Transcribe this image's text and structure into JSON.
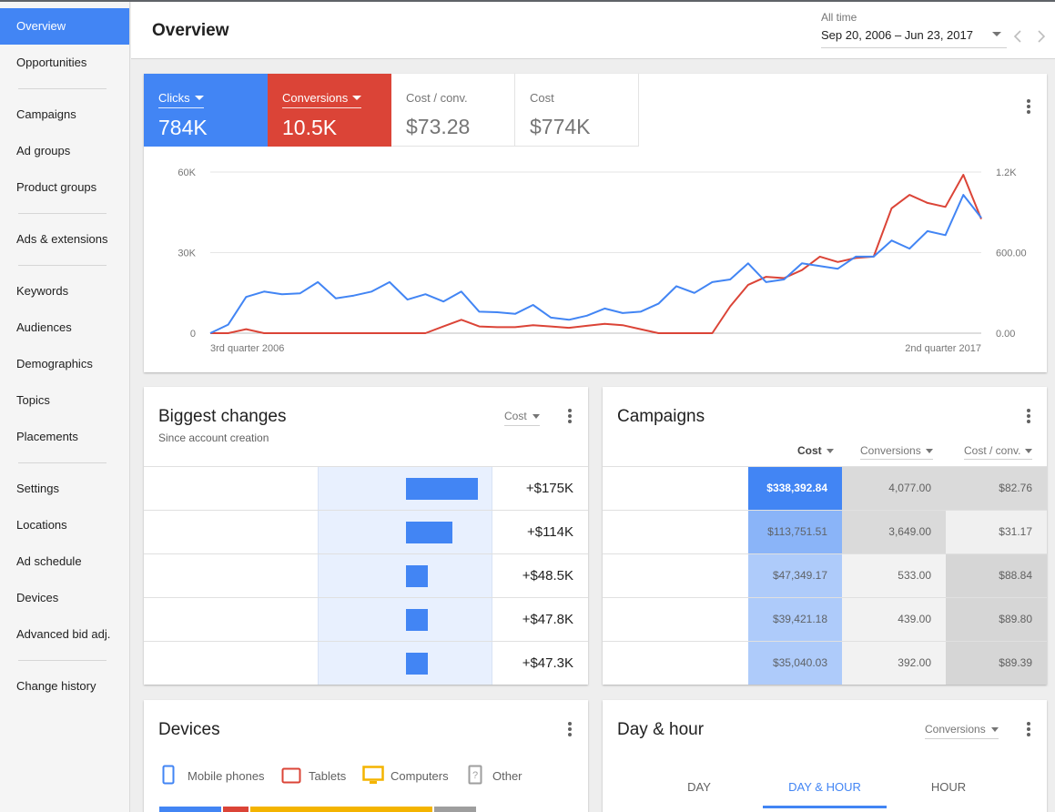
{
  "sidebar": {
    "groups": [
      [
        "Overview",
        "Opportunities"
      ],
      [
        "Campaigns",
        "Ad groups",
        "Product groups"
      ],
      [
        "Ads & extensions"
      ],
      [
        "Keywords",
        "Audiences",
        "Demographics",
        "Topics",
        "Placements"
      ],
      [
        "Settings",
        "Locations",
        "Ad schedule",
        "Devices",
        "Advanced bid adj."
      ],
      [
        "Change history"
      ]
    ],
    "active": "Overview"
  },
  "header": {
    "title": "Overview",
    "date_label": "All time",
    "date_range": "Sep 20, 2006 – Jun 23, 2017"
  },
  "overview": {
    "tiles": [
      {
        "label": "Clicks",
        "value": "784K"
      },
      {
        "label": "Conversions",
        "value": "10.5K"
      },
      {
        "label": "Cost / conv.",
        "value": "$73.28"
      },
      {
        "label": "Cost",
        "value": "$774K"
      }
    ]
  },
  "chart_data": {
    "type": "line",
    "x_tick_labels": [
      "3rd quarter 2006",
      "2nd quarter 2017"
    ],
    "y_left_ticks": [
      "60K",
      "30K",
      "0"
    ],
    "y_right_ticks": [
      "1.2K",
      "600.00",
      "0.00"
    ],
    "ylim_left": [
      0,
      60000
    ],
    "ylim_right": [
      0,
      1200
    ],
    "grid": true,
    "colors": {
      "clicks": "#4285f4",
      "conversions": "#db4437"
    },
    "series": [
      {
        "axis": "left",
        "values": [
          0,
          3200,
          13500,
          15500,
          14500,
          14800,
          19000,
          13000,
          14000,
          15500,
          19000,
          12500,
          14500,
          11800,
          15500,
          8000,
          7800,
          7200,
          10500,
          5800,
          5000,
          6500,
          9200,
          7500,
          8000,
          11000,
          17500,
          15000,
          19000,
          20000,
          26000,
          19000,
          20000,
          26000,
          25000,
          24000,
          28500,
          28500,
          34500,
          31500,
          38000,
          36500,
          51500,
          43000
        ]
      },
      {
        "axis": "right",
        "values": [
          0,
          0,
          30,
          0,
          0,
          0,
          0,
          0,
          0,
          0,
          0,
          0,
          0,
          50,
          100,
          50,
          45,
          45,
          60,
          50,
          40,
          55,
          70,
          60,
          30,
          0,
          0,
          0,
          0,
          200,
          360,
          420,
          410,
          470,
          570,
          530,
          560,
          570,
          930,
          1030,
          970,
          940,
          1180,
          850
        ]
      }
    ]
  },
  "biggest_changes": {
    "title": "Biggest changes",
    "subtitle": "Since account creation",
    "dropdown": "Cost",
    "rows": [
      {
        "value": "+$175K",
        "amount": 175
      },
      {
        "value": "+$114K",
        "amount": 114
      },
      {
        "value": "+$48.5K",
        "amount": 48.5
      },
      {
        "value": "+$47.8K",
        "amount": 47.8
      },
      {
        "value": "+$47.3K",
        "amount": 47.3
      }
    ]
  },
  "campaigns": {
    "title": "Campaigns",
    "columns": [
      "Cost",
      "Conversions",
      "Cost / conv."
    ],
    "rows": [
      {
        "cost": "$338,392.84",
        "conv": "4,077.00",
        "cpc": "$82.76",
        "cost_bg": "#4285f4",
        "conv_bg": "#dadada",
        "cpc_bg": "#dadada"
      },
      {
        "cost": "$113,751.51",
        "conv": "3,649.00",
        "cpc": "$31.17",
        "cost_bg": "#8ab4f8",
        "conv_bg": "#dadada",
        "cpc_bg": "#f0f0f0"
      },
      {
        "cost": "$47,349.17",
        "conv": "533.00",
        "cpc": "$88.84",
        "cost_bg": "#aecbfa",
        "conv_bg": "#f2f2f2",
        "cpc_bg": "#d6d6d6"
      },
      {
        "cost": "$39,421.18",
        "conv": "439.00",
        "cpc": "$89.80",
        "cost_bg": "#aecbfa",
        "conv_bg": "#f2f2f2",
        "cpc_bg": "#d6d6d6"
      },
      {
        "cost": "$35,040.03",
        "conv": "392.00",
        "cpc": "$89.39",
        "cost_bg": "#aecbfa",
        "conv_bg": "#f2f2f2",
        "cpc_bg": "#d6d6d6"
      }
    ]
  },
  "devices": {
    "title": "Devices",
    "legend": [
      {
        "label": "Mobile phones",
        "icon": "mobile-phone-icon",
        "color": "#4285f4"
      },
      {
        "label": "Tablets",
        "icon": "tablet-icon",
        "color": "#db4437"
      },
      {
        "label": "Computers",
        "icon": "computer-icon",
        "color": "#f4b400"
      },
      {
        "label": "Other",
        "icon": "other-device-icon",
        "color": "#9e9e9e"
      }
    ]
  },
  "day_hour": {
    "title": "Day & hour",
    "dropdown": "Conversions",
    "tabs": [
      "DAY",
      "DAY & HOUR",
      "HOUR"
    ],
    "active_tab": "DAY & HOUR"
  }
}
